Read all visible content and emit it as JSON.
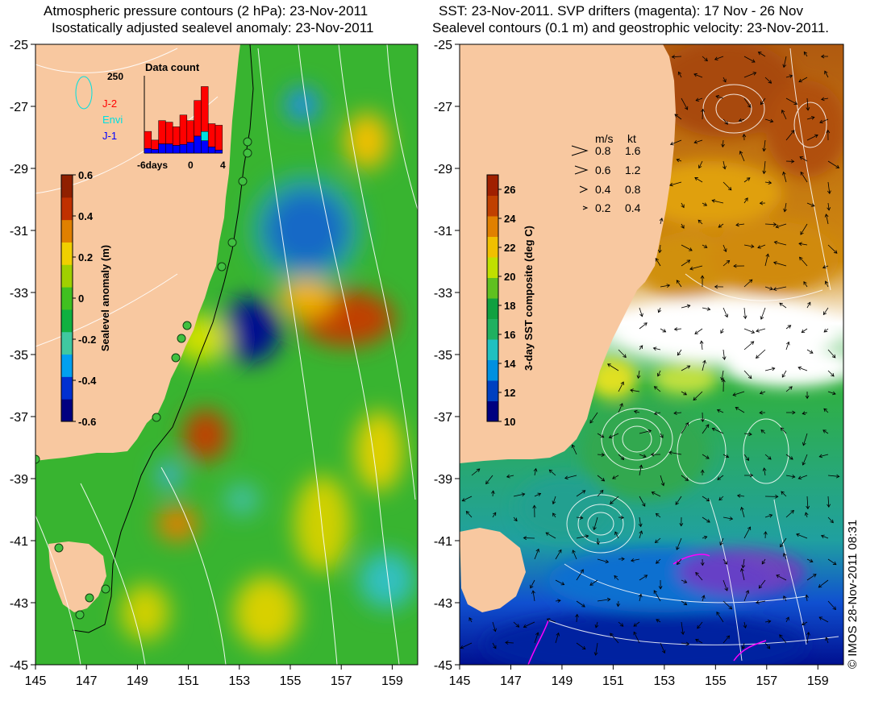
{
  "left_map": {
    "title_line1": "Atmospheric pressure contours (2 hPa): 23-Nov-2011",
    "title_line2": "Isostatically adjusted sealevel anomaly: 23-Nov-2011",
    "colorbar": {
      "label": "Sealevel anomaly (m)",
      "ticks": [
        "0.6",
        "0.4",
        "0.2",
        "0",
        "-0.2",
        "-0.4",
        "-0.6"
      ],
      "range": [
        -0.6,
        0.6
      ],
      "colors": [
        "#000080",
        "#0030d0",
        "#00a0f0",
        "#40c8a0",
        "#10b040",
        "#40c020",
        "#a0d000",
        "#f0d000",
        "#e08000",
        "#c03000",
        "#902000"
      ]
    },
    "inset": {
      "title": "Data count",
      "ymax_label": "250",
      "x_ticks": [
        "-6days",
        "0",
        "4"
      ],
      "legend": [
        {
          "label": "J-2",
          "color": "#ff0000"
        },
        {
          "label": "Envi",
          "color": "#00e0e0"
        },
        {
          "label": "J-1",
          "color": "#0000ff"
        }
      ],
      "bars_j2": [
        55,
        30,
        75,
        70,
        60,
        95,
        70,
        115,
        145,
        75,
        80
      ],
      "bars_j1": [
        15,
        12,
        30,
        30,
        25,
        28,
        35,
        55,
        40,
        20,
        10
      ],
      "bars_envi": [
        0,
        0,
        0,
        0,
        0,
        0,
        0,
        0,
        30,
        0,
        0
      ]
    }
  },
  "right_map": {
    "title_line1": "SST: 23-Nov-2011. SVP drifters (magenta): 17 Nov - 26 Nov",
    "title_line2": "Sealevel contours (0.1 m) and geostrophic velocity: 23-Nov-2011.",
    "colorbar": {
      "label": "3-day SST composite (deg C)",
      "ticks": [
        "26",
        "24",
        "22",
        "20",
        "18",
        "16",
        "14",
        "12",
        "10"
      ],
      "range": [
        10,
        27
      ],
      "colors": [
        "#000080",
        "#0040c0",
        "#0090e0",
        "#20c0c0",
        "#20b060",
        "#10a040",
        "#60c020",
        "#c0e000",
        "#f0c000",
        "#e08000",
        "#c04000",
        "#a02000"
      ]
    },
    "velocity_legend": {
      "header_ms": "m/s",
      "header_kt": "kt",
      "rows": [
        {
          "ms": "0.8",
          "kt": "1.6"
        },
        {
          "ms": "0.6",
          "kt": "1.2"
        },
        {
          "ms": "0.4",
          "kt": "0.8"
        },
        {
          "ms": "0.2",
          "kt": "0.4"
        }
      ]
    }
  },
  "axes": {
    "x_ticks": [
      "145",
      "147",
      "149",
      "151",
      "153",
      "155",
      "157",
      "159"
    ],
    "y_ticks": [
      "-25",
      "-27",
      "-29",
      "-31",
      "-33",
      "-35",
      "-37",
      "-39",
      "-41",
      "-43",
      "-45"
    ],
    "lon_range": [
      145,
      160
    ],
    "lat_range": [
      -45,
      -25
    ]
  },
  "colors": {
    "land": "#f8c8a0",
    "sea_mid": "#30b030",
    "sst_warm": "#d08000",
    "cloud": "#ffffff",
    "drifter": "#ff00ff"
  },
  "copyright": "© IMOS 28-Nov-2011 08:31"
}
